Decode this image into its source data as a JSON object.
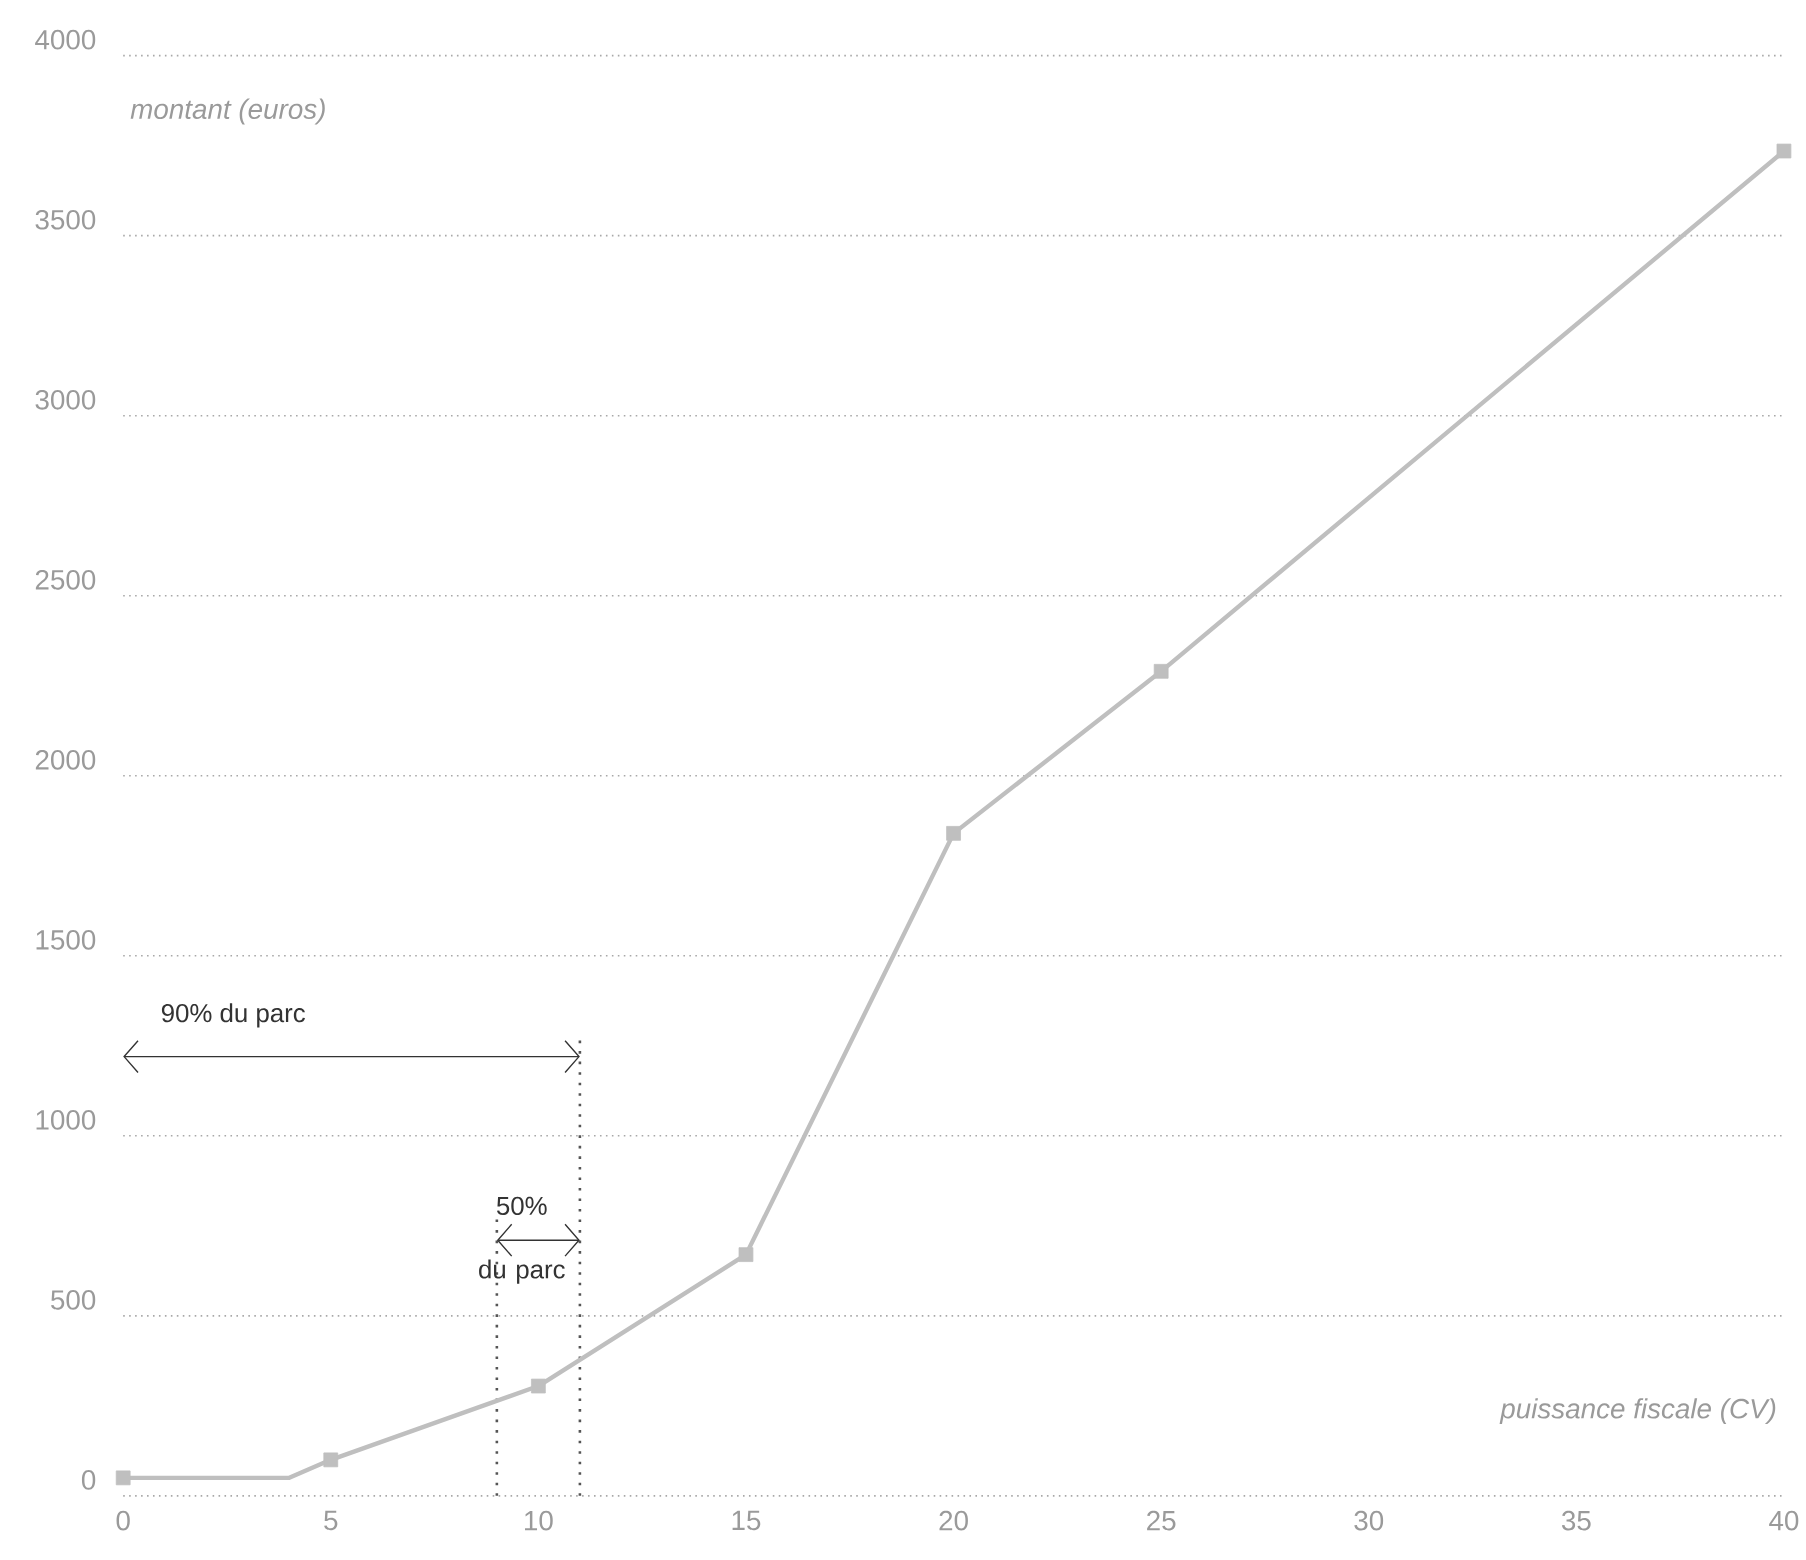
{
  "chart_data": {
    "type": "line",
    "xlabel": "puissance fiscale (CV)",
    "ylabel": "montant (euros)",
    "xlim": [
      0,
      40
    ],
    "xticks": [
      0,
      5,
      10,
      15,
      20,
      25,
      30,
      35,
      40
    ],
    "ylim": [
      0,
      4000
    ],
    "yticks": [
      0,
      500,
      1000,
      1500,
      2000,
      2500,
      3000,
      3500,
      4000
    ],
    "grid": "y",
    "series": [
      {
        "color": "#bfbfbf",
        "marker": "none",
        "x": [
          0,
          4,
          5,
          10,
          15,
          20,
          25,
          40
        ],
        "values": [
          50,
          50,
          100,
          305,
          670,
          1840,
          2290,
          3735
        ]
      },
      {
        "type": "scatter",
        "color": "#bfbfbf",
        "marker": "square",
        "x": [
          0,
          5,
          10,
          15,
          20,
          25,
          40
        ],
        "values": [
          50,
          100,
          305,
          670,
          1840,
          2290,
          3735
        ]
      }
    ],
    "ref_lines": [
      {
        "axis": "x",
        "value": 9,
        "color": "#555555",
        "line_style": "dotted"
      },
      {
        "axis": "x",
        "value": 11,
        "color": "#555555",
        "line_style": "dotted"
      }
    ],
    "annotations": [
      "90% du parc",
      "50% du parc"
    ]
  }
}
